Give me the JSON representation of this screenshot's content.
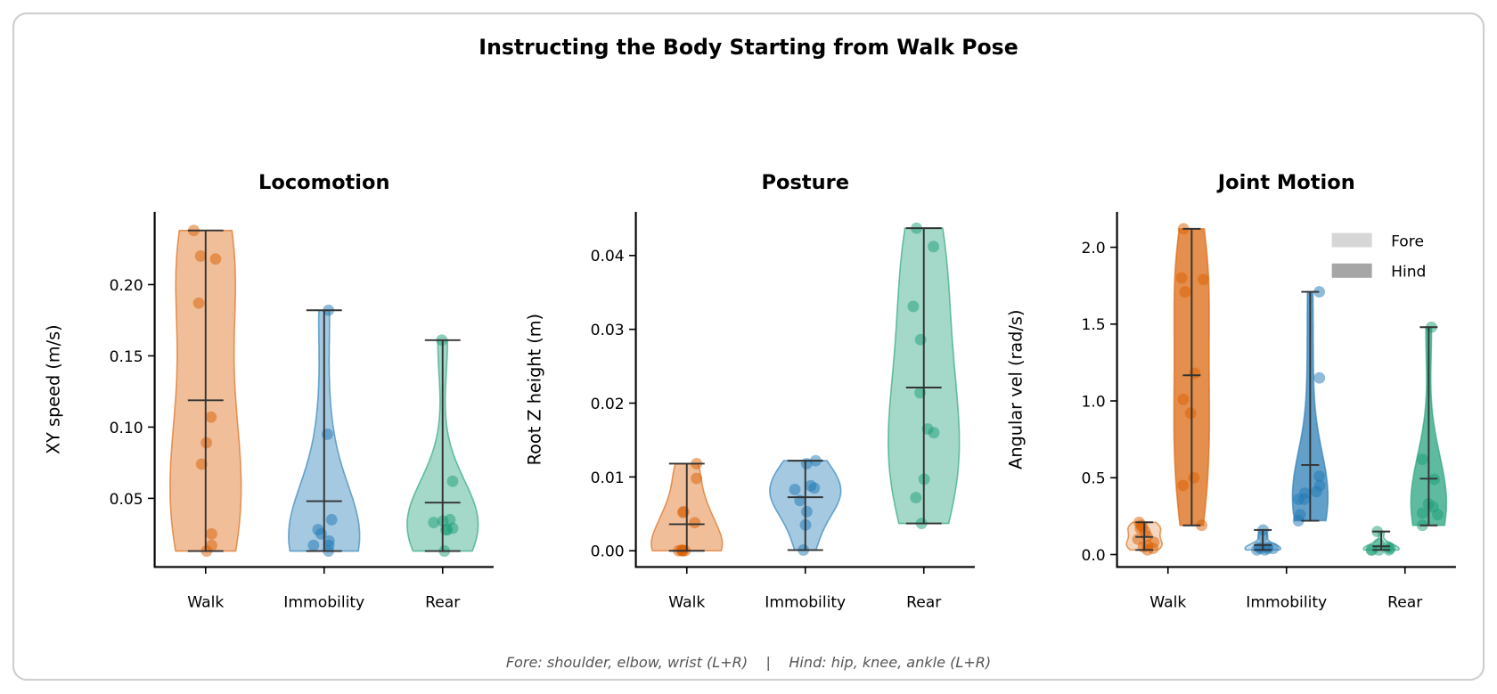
{
  "title": "Instructing the Body Starting from Walk Pose",
  "footer": "Fore: shoulder, elbow, wrist (L+R)    |    Hind: hip, knee, ankle (L+R)",
  "colors": {
    "Walk": "#d95f02",
    "Immobility": "#1f78b4",
    "Rear": "#1b9e77",
    "lines": "#333333",
    "fore_legend": "#d6d6d6",
    "hind_legend": "#a6a6a6"
  },
  "chart_data": [
    {
      "type": "violin",
      "title": "Locomotion",
      "ylabel": "XY speed (m/s)",
      "categories": [
        "Walk",
        "Immobility",
        "Rear"
      ],
      "ylim": [
        0.0018,
        0.251
      ],
      "yticks": [
        0.05,
        0.1,
        0.15,
        0.2
      ],
      "ytick_labels": [
        "0.05",
        "0.10",
        "0.15",
        "0.20"
      ],
      "grid": false,
      "series": [
        {
          "values": [
            [
              0.238,
              0.218,
              0.22,
              0.187,
              0.107,
              0.089,
              0.074,
              0.025,
              0.017,
              0.013
            ],
            [
              0.182,
              0.095,
              0.035,
              0.028,
              0.025,
              0.02,
              0.017,
              0.017,
              0.013
            ],
            [
              0.161,
              0.062,
              0.035,
              0.033,
              0.034,
              0.029,
              0.028,
              0.028,
              0.013
            ]
          ]
        }
      ]
    },
    {
      "type": "violin",
      "title": "Posture",
      "ylabel": "Root Z height (m)",
      "categories": [
        "Walk",
        "Immobility",
        "Rear"
      ],
      "ylim": [
        -0.0022,
        0.0459
      ],
      "yticks": [
        0,
        0.01,
        0.02,
        0.03,
        0.04
      ],
      "ytick_labels": [
        "0.00",
        "0.01",
        "0.02",
        "0.03",
        "0.04"
      ],
      "grid": false,
      "series": [
        {
          "values": [
            [
              0.0118,
              0.0098,
              0.0053,
              0.0052,
              0.0038,
              0.0,
              0.0,
              0.0,
              0.0,
              0.0001
            ],
            [
              0.0122,
              0.0118,
              0.0088,
              0.0085,
              0.0083,
              0.0068,
              0.0053,
              0.0035,
              0.0001
            ],
            [
              0.0437,
              0.0412,
              0.0331,
              0.0286,
              0.0214,
              0.0165,
              0.016,
              0.0097,
              0.0072,
              0.0037
            ]
          ]
        }
      ]
    },
    {
      "type": "violin",
      "title": "Joint Motion",
      "ylabel": "Angular vel (rad/s)",
      "categories": [
        "Walk",
        "Immobility",
        "Rear"
      ],
      "ylim": [
        -0.081,
        2.23
      ],
      "yticks": [
        0,
        0.5,
        1.0,
        1.5,
        2.0
      ],
      "ytick_labels": [
        "0.0",
        "0.5",
        "1.0",
        "1.5",
        "2.0"
      ],
      "grid": false,
      "legend": {
        "placement": "top-right",
        "entries": [
          "Fore",
          "Hind"
        ]
      },
      "series": [
        {
          "name": "Fore",
          "values": [
            [
              0.21,
              0.19,
              0.18,
              0.17,
              0.15,
              0.12,
              0.1,
              0.08,
              0.05,
              0.04,
              0.03,
              0.06
            ],
            [
              0.16,
              0.12,
              0.05,
              0.04,
              0.04,
              0.04,
              0.03,
              0.03,
              0.05
            ],
            [
              0.15,
              0.07,
              0.05,
              0.04,
              0.03,
              0.03,
              0.03,
              0.03
            ]
          ]
        },
        {
          "name": "Hind",
          "values": [
            [
              2.12,
              1.8,
              1.79,
              1.71,
              1.18,
              1.01,
              0.92,
              0.5,
              0.45,
              0.19
            ],
            [
              1.71,
              1.15,
              0.51,
              0.45,
              0.41,
              0.4,
              0.36,
              0.36,
              0.26,
              0.22
            ],
            [
              1.48,
              0.62,
              0.49,
              0.33,
              0.31,
              0.27,
              0.26,
              0.19
            ]
          ]
        }
      ]
    }
  ]
}
